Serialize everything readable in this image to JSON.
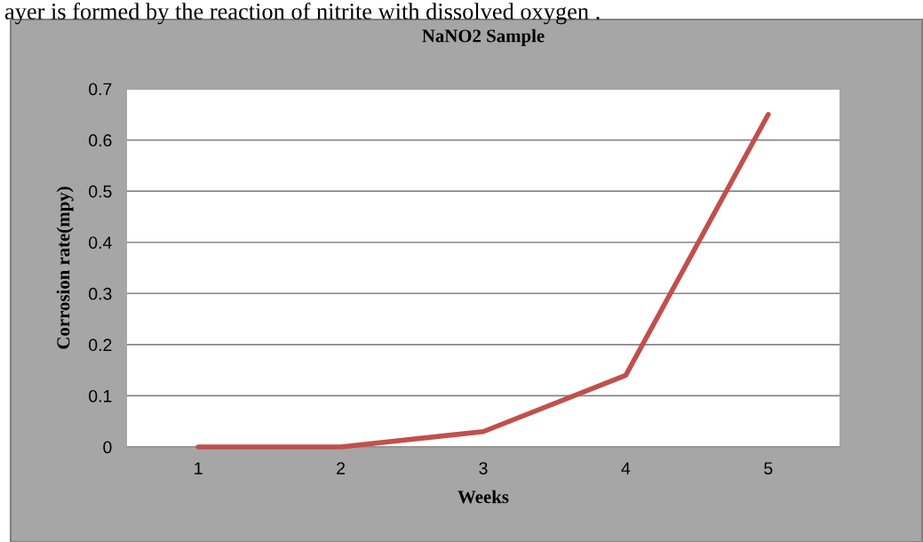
{
  "chart_data": {
    "type": "line",
    "title": "NaNO2 Sample",
    "xlabel": "Weeks",
    "ylabel": "Corrosion rate(mpy)",
    "categories": [
      "1",
      "2",
      "3",
      "4",
      "5"
    ],
    "series": [
      {
        "color": "#c0504d",
        "values": [
          0,
          0,
          0.03,
          0.14,
          0.65
        ]
      }
    ],
    "ylim": [
      0,
      0.7
    ],
    "yticks": [
      0,
      0.1,
      0.2,
      0.3,
      0.4,
      0.5,
      0.6,
      0.7
    ],
    "grid": "y",
    "legend": false,
    "marker": "none",
    "line_style": "solid",
    "annotations": [
      "ayer is formed by the reaction of nitrite with dissolved oxygen ."
    ]
  }
}
